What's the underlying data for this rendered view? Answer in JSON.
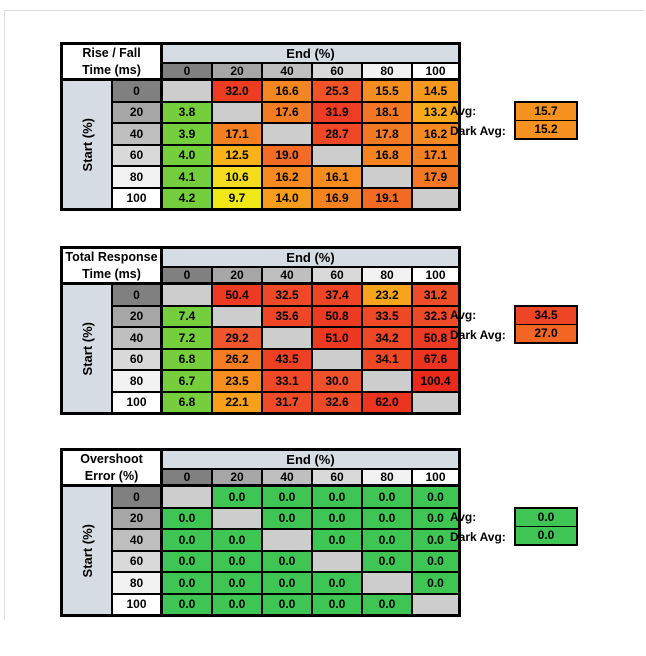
{
  "labels": {
    "end_header": "End (%)",
    "start_header": "Start (%)",
    "avg": "Avg:",
    "dark_avg": "Dark Avg:"
  },
  "axis": {
    "col_headers": [
      "0",
      "20",
      "40",
      "60",
      "80",
      "100"
    ],
    "row_headers": [
      "0",
      "20",
      "40",
      "60",
      "80",
      "100"
    ],
    "header_shades": [
      "#808080",
      "#a6a6a6",
      "#bfbfbf",
      "#d9d9d9",
      "#f2f2f2",
      "#ffffff"
    ]
  },
  "colors": {
    "band": "#d6dce4",
    "blank": "#cdcdcd",
    "border": "#000000",
    "frame": "#dcdcdc"
  },
  "tables": [
    {
      "title_line1": "Rise / Fall",
      "title_line2": "Time (ms)",
      "cells": [
        [
          {
            "v": "",
            "c": "#cdcdcd"
          },
          {
            "v": "32.0",
            "c": "#ee3c23"
          },
          {
            "v": "16.6",
            "c": "#f58521"
          },
          {
            "v": "25.3",
            "c": "#f15329"
          },
          {
            "v": "15.5",
            "c": "#f68d20"
          },
          {
            "v": "14.5",
            "c": "#f7991e"
          }
        ],
        [
          {
            "v": "3.8",
            "c": "#75ce3c"
          },
          {
            "v": "",
            "c": "#cdcdcd"
          },
          {
            "v": "17.6",
            "c": "#f47b23"
          },
          {
            "v": "31.9",
            "c": "#ee3d24"
          },
          {
            "v": "18.1",
            "c": "#f47624"
          },
          {
            "v": "13.2",
            "c": "#f8a91b"
          }
        ],
        [
          {
            "v": "3.9",
            "c": "#75ce3c"
          },
          {
            "v": "17.1",
            "c": "#f58022"
          },
          {
            "v": "",
            "c": "#cdcdcd"
          },
          {
            "v": "28.7",
            "c": "#f04727"
          },
          {
            "v": "17.8",
            "c": "#f47923"
          },
          {
            "v": "16.2",
            "c": "#f68a20"
          }
        ],
        [
          {
            "v": "4.0",
            "c": "#75ce3c"
          },
          {
            "v": "12.5",
            "c": "#f9b219"
          },
          {
            "v": "19.0",
            "c": "#f36b25"
          },
          {
            "v": "",
            "c": "#cdcdcd"
          },
          {
            "v": "16.8",
            "c": "#f58321"
          },
          {
            "v": "17.1",
            "c": "#f58022"
          }
        ],
        [
          {
            "v": "4.1",
            "c": "#74cd3c"
          },
          {
            "v": "10.6",
            "c": "#f5dd1e"
          },
          {
            "v": "16.2",
            "c": "#f68a20"
          },
          {
            "v": "16.1",
            "c": "#f68b20"
          },
          {
            "v": "",
            "c": "#cdcdcd"
          },
          {
            "v": "17.9",
            "c": "#f47823"
          }
        ],
        [
          {
            "v": "4.2",
            "c": "#74cd3c"
          },
          {
            "v": "9.7",
            "c": "#f0e816"
          },
          {
            "v": "14.0",
            "c": "#f79d1d"
          },
          {
            "v": "16.9",
            "c": "#f58221"
          },
          {
            "v": "19.1",
            "c": "#f36a25"
          },
          {
            "v": "",
            "c": "#cdcdcd"
          }
        ]
      ],
      "avg": {
        "v": "15.7",
        "c": "#f6921f"
      },
      "dark_avg": {
        "v": "15.2",
        "c": "#f69320"
      }
    },
    {
      "title_line1": "Total Response",
      "title_line2": "Time (ms)",
      "cells": [
        [
          {
            "v": "",
            "c": "#cdcdcd"
          },
          {
            "v": "50.4",
            "c": "#ed3a22"
          },
          {
            "v": "32.5",
            "c": "#ef4a28"
          },
          {
            "v": "37.4",
            "c": "#ef4426"
          },
          {
            "v": "23.2",
            "c": "#f7a41d"
          },
          {
            "v": "31.2",
            "c": "#ef4c29"
          }
        ],
        [
          {
            "v": "7.4",
            "c": "#75ce3c"
          },
          {
            "v": "",
            "c": "#cdcdcd"
          },
          {
            "v": "35.6",
            "c": "#ef4627"
          },
          {
            "v": "50.8",
            "c": "#ed3a22"
          },
          {
            "v": "33.5",
            "c": "#ef4928"
          },
          {
            "v": "32.3",
            "c": "#ef4a28"
          }
        ],
        [
          {
            "v": "7.2",
            "c": "#75ce3c"
          },
          {
            "v": "29.2",
            "c": "#f1552c"
          },
          {
            "v": "",
            "c": "#cdcdcd"
          },
          {
            "v": "51.0",
            "c": "#ed3922"
          },
          {
            "v": "34.2",
            "c": "#ef4827"
          },
          {
            "v": "50.8",
            "c": "#ed3a22"
          }
        ],
        [
          {
            "v": "6.8",
            "c": "#76ce3c"
          },
          {
            "v": "26.2",
            "c": "#f47c22"
          },
          {
            "v": "43.5",
            "c": "#ee4124"
          },
          {
            "v": "",
            "c": "#cdcdcd"
          },
          {
            "v": "34.1",
            "c": "#ef4827"
          },
          {
            "v": "67.6",
            "c": "#ec3320"
          }
        ],
        [
          {
            "v": "6.7",
            "c": "#76ce3c"
          },
          {
            "v": "23.5",
            "c": "#f68f1f"
          },
          {
            "v": "33.1",
            "c": "#ef4928"
          },
          {
            "v": "30.0",
            "c": "#f0502a"
          },
          {
            "v": "",
            "c": "#cdcdcd"
          },
          {
            "v": "100.4",
            "c": "#eb2a1b"
          }
        ],
        [
          {
            "v": "6.8",
            "c": "#76ce3c"
          },
          {
            "v": "22.1",
            "c": "#f89f1c"
          },
          {
            "v": "31.7",
            "c": "#ef4b29"
          },
          {
            "v": "32.6",
            "c": "#ef4a28"
          },
          {
            "v": "62.0",
            "c": "#ec3520"
          },
          {
            "v": "",
            "c": "#cdcdcd"
          }
        ]
      ],
      "avg": {
        "v": "34.5",
        "c": "#ee4526"
      },
      "dark_avg": {
        "v": "27.0",
        "c": "#f26522"
      }
    },
    {
      "title_line1": "Overshoot",
      "title_line2": "Error (%)",
      "cells": [
        [
          {
            "v": "",
            "c": "#cdcdcd"
          },
          {
            "v": "0.0",
            "c": "#3ec553"
          },
          {
            "v": "0.0",
            "c": "#3ec553"
          },
          {
            "v": "0.0",
            "c": "#3ec553"
          },
          {
            "v": "0.0",
            "c": "#3ec553"
          },
          {
            "v": "0.0",
            "c": "#3ec553"
          }
        ],
        [
          {
            "v": "0.0",
            "c": "#3ec553"
          },
          {
            "v": "",
            "c": "#cdcdcd"
          },
          {
            "v": "0.0",
            "c": "#3ec553"
          },
          {
            "v": "0.0",
            "c": "#3ec553"
          },
          {
            "v": "0.0",
            "c": "#3ec553"
          },
          {
            "v": "0.0",
            "c": "#3ec553"
          }
        ],
        [
          {
            "v": "0.0",
            "c": "#3ec553"
          },
          {
            "v": "0.0",
            "c": "#3ec553"
          },
          {
            "v": "",
            "c": "#cdcdcd"
          },
          {
            "v": "0.0",
            "c": "#3ec553"
          },
          {
            "v": "0.0",
            "c": "#3ec553"
          },
          {
            "v": "0.0",
            "c": "#3ec553"
          }
        ],
        [
          {
            "v": "0.0",
            "c": "#3ec553"
          },
          {
            "v": "0.0",
            "c": "#3ec553"
          },
          {
            "v": "0.0",
            "c": "#3ec553"
          },
          {
            "v": "",
            "c": "#cdcdcd"
          },
          {
            "v": "0.0",
            "c": "#3ec553"
          },
          {
            "v": "0.0",
            "c": "#3ec553"
          }
        ],
        [
          {
            "v": "0.0",
            "c": "#3ec553"
          },
          {
            "v": "0.0",
            "c": "#3ec553"
          },
          {
            "v": "0.0",
            "c": "#3ec553"
          },
          {
            "v": "0.0",
            "c": "#3ec553"
          },
          {
            "v": "",
            "c": "#cdcdcd"
          },
          {
            "v": "0.0",
            "c": "#3ec553"
          }
        ],
        [
          {
            "v": "0.0",
            "c": "#3ec553"
          },
          {
            "v": "0.0",
            "c": "#3ec553"
          },
          {
            "v": "0.0",
            "c": "#3ec553"
          },
          {
            "v": "0.0",
            "c": "#3ec553"
          },
          {
            "v": "0.0",
            "c": "#3ec553"
          },
          {
            "v": "",
            "c": "#cdcdcd"
          }
        ]
      ],
      "avg": {
        "v": "0.0",
        "c": "#3ec553"
      },
      "dark_avg": {
        "v": "0.0",
        "c": "#3ec553"
      }
    }
  ]
}
